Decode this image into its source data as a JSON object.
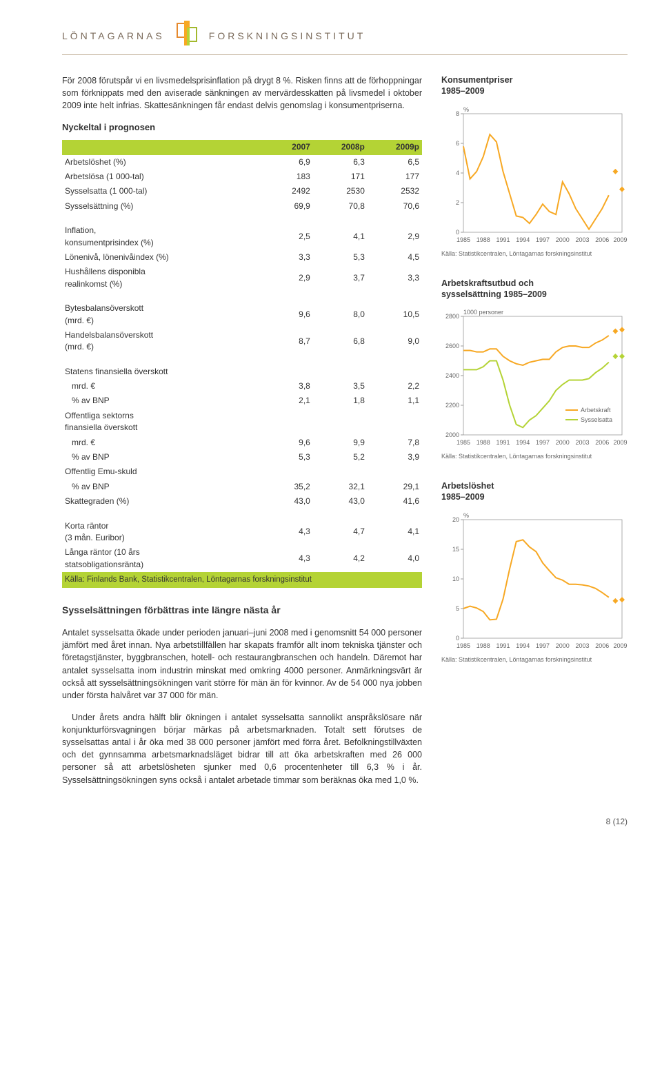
{
  "header": {
    "left": "LÖNTAGARNAS",
    "right": "FORSKNINGSINSTITUT"
  },
  "para1": "För 2008 förutspår vi en livsmedelsprisinflation på drygt 8 %. Risken finns att de förhoppningar som förknippats med den aviserade sänkningen av mervärdesskatten på livsmedel i oktober 2009 inte helt infrias. Skattesänkningen får endast delvis genomslag i konsumentpriserna.",
  "nyckeltal_title": "Nyckeltal i prognosen",
  "table": {
    "head": [
      "",
      "2007",
      "2008p",
      "2009p"
    ],
    "rows1": [
      [
        "Arbetslöshet (%)",
        "6,9",
        "6,3",
        "6,5"
      ],
      [
        "Arbetslösa (1 000-tal)",
        "183",
        "171",
        "177"
      ],
      [
        "Sysselsatta (1 000-tal)",
        "2492",
        "2530",
        "2532"
      ],
      [
        "Sysselsättning (%)",
        "69,9",
        "70,8",
        "70,6"
      ]
    ],
    "rows2": [
      [
        "Inflation,\nkonsumentprisindex (%)",
        "2,5",
        "4,1",
        "2,9"
      ],
      [
        "Lönenivå, lönenivåindex (%)",
        "3,3",
        "5,3",
        "4,5"
      ],
      [
        "Hushållens disponibla\nrealinkomst (%)",
        "2,9",
        "3,7",
        "3,3"
      ]
    ],
    "rows3": [
      [
        "Bytesbalansöverskott\n(mrd. €)",
        "9,6",
        "8,0",
        "10,5"
      ],
      [
        "Handelsbalansöverskott\n(mrd. €)",
        "8,7",
        "6,8",
        "9,0"
      ]
    ],
    "rows4": [
      [
        "Statens finansiella överskott",
        "",
        "",
        ""
      ],
      [
        "   mrd. €",
        "3,8",
        "3,5",
        "2,2"
      ],
      [
        "   % av BNP",
        "2,1",
        "1,8",
        "1,1"
      ],
      [
        "Offentliga sektorns\nfinansiella överskott",
        "",
        "",
        ""
      ],
      [
        "   mrd. €",
        "9,6",
        "9,9",
        "7,8"
      ],
      [
        "   % av BNP",
        "5,3",
        "5,2",
        "3,9"
      ],
      [
        "Offentlig Emu-skuld",
        "",
        "",
        ""
      ],
      [
        "   % av BNP",
        "35,2",
        "32,1",
        "29,1"
      ],
      [
        "Skattegraden (%)",
        "43,0",
        "43,0",
        "41,6"
      ]
    ],
    "rows5": [
      [
        "Korta räntor\n(3 mån. Euribor)",
        "4,3",
        "4,7",
        "4,1"
      ],
      [
        "Långa räntor (10 års\nstatsobligationsränta)",
        "4,3",
        "4,2",
        "4,0"
      ]
    ],
    "source": "Källa: Finlands Bank, Statistikcentralen, Löntagarnas forskningsinstitut"
  },
  "heading2": "Sysselsättningen förbättras inte längre nästa år",
  "para2": "Antalet sysselsatta ökade under perioden januari–juni 2008 med i genomsnitt 54 000 personer jämfört med året innan. Nya arbetstillfällen har skapats framför allt inom tekniska tjänster och företagstjänster, byggbranschen, hotell- och restaurangbranschen och handeln. Däremot har antalet sysselsatta inom industrin minskat med omkring 4000 personer. Anmärkningsvärt är också att sysselsättningsökningen varit större för män än för kvinnor. Av de 54 000 nya jobben under första halvåret var 37 000 för män.",
  "para3": "Under årets andra hälft blir ökningen i antalet sysselsatta sannolikt anspråkslösare när konjunkturförsvagningen börjar märkas på arbetsmarknaden. Totalt sett förutses de sysselsattas antal i år öka med 38 000 personer jämfört med förra året. Befolkningstillväxten och det gynnsamma arbetsmarknadsläget bidrar till att öka arbetskraften med 26 000 personer så att arbetslösheten sjunker med 0,6 procentenheter till 6,3 % i år. Sysselsättningsökningen syns också i antalet arbetade timmar som beräknas öka med 1,0 %.",
  "chart1": {
    "title": "Konsumentpriser\n1985–2009",
    "ylabel": "%",
    "ylim": [
      0,
      8
    ],
    "ytick": [
      0,
      2,
      4,
      6,
      8
    ],
    "xticks": [
      "1985",
      "1988",
      "1991",
      "1994",
      "1997",
      "2000",
      "2003",
      "2006",
      "2009p"
    ],
    "line_color": "#f7a823",
    "marker_color": "#f7a823",
    "data": [
      5.8,
      3.6,
      4.1,
      5.1,
      6.6,
      6.1,
      4.1,
      2.6,
      1.1,
      1.0,
      0.6,
      1.2,
      1.9,
      1.4,
      1.2,
      3.4,
      2.6,
      1.6,
      0.9,
      0.2,
      0.9,
      1.6,
      2.5
    ],
    "forecast": [
      4.1,
      2.9
    ],
    "source": "Källa: Statistikcentralen, Löntagarnas forskningsinstitut"
  },
  "chart2": {
    "title": "Arbetskraftsutbud och\nsysselsättning 1985–2009",
    "ylabel": "1000 personer",
    "ylim": [
      2000,
      2800
    ],
    "ytick": [
      2000,
      2200,
      2400,
      2600,
      2800
    ],
    "xticks": [
      "1985",
      "1988",
      "1991",
      "1994",
      "1997",
      "2000",
      "2003",
      "2006",
      "2009p"
    ],
    "colors": {
      "arbetskraft": "#f7a823",
      "sysselsatta": "#b4d335"
    },
    "arbetskraft": [
      2570,
      2570,
      2560,
      2560,
      2580,
      2580,
      2530,
      2500,
      2480,
      2470,
      2490,
      2500,
      2510,
      2510,
      2560,
      2590,
      2600,
      2600,
      2590,
      2590,
      2620,
      2640,
      2670
    ],
    "arbetskraft_f": [
      2700,
      2710
    ],
    "sysselsatta": [
      2440,
      2440,
      2440,
      2460,
      2500,
      2500,
      2370,
      2200,
      2070,
      2050,
      2100,
      2130,
      2180,
      2230,
      2300,
      2340,
      2370,
      2370,
      2370,
      2380,
      2420,
      2450,
      2490
    ],
    "sysselsatta_f": [
      2530,
      2530
    ],
    "legend": [
      "Arbetskraft",
      "Sysselsatta"
    ],
    "source": "Källa: Statistikcentralen, Löntagarnas forskningsinstitut"
  },
  "chart3": {
    "title": "Arbetslöshet\n1985–2009",
    "ylabel": "%",
    "ylim": [
      0,
      20
    ],
    "ytick": [
      0,
      5,
      10,
      15,
      20
    ],
    "xticks": [
      "1985",
      "1988",
      "1991",
      "1994",
      "1997",
      "2000",
      "2003",
      "2006",
      "2009p"
    ],
    "line_color": "#f7a823",
    "data": [
      5.0,
      5.4,
      5.1,
      4.5,
      3.1,
      3.2,
      6.6,
      11.7,
      16.3,
      16.6,
      15.4,
      14.6,
      12.7,
      11.4,
      10.2,
      9.8,
      9.1,
      9.1,
      9.0,
      8.8,
      8.4,
      7.7,
      6.9
    ],
    "forecast": [
      6.3,
      6.5
    ],
    "source": "Källa: Statistikcentralen, Löntagarnas forskningsinstitut"
  },
  "footer": "8 (12)"
}
